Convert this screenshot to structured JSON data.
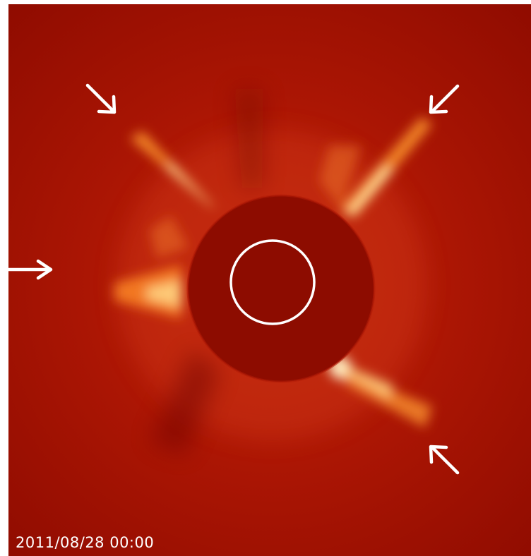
{
  "image": {
    "description_free": true,
    "timestamp": "2011/08/28 00:00",
    "colors": {
      "background": "#a40f00",
      "occulter_disk": "#8d0c00",
      "streamer": "#ffb040",
      "streamer_core": "#fff2c0",
      "annotation": "#ffffff"
    },
    "icons": {
      "solar_limb": "circle-outline-icon",
      "pointer": "arrow-icon"
    }
  }
}
